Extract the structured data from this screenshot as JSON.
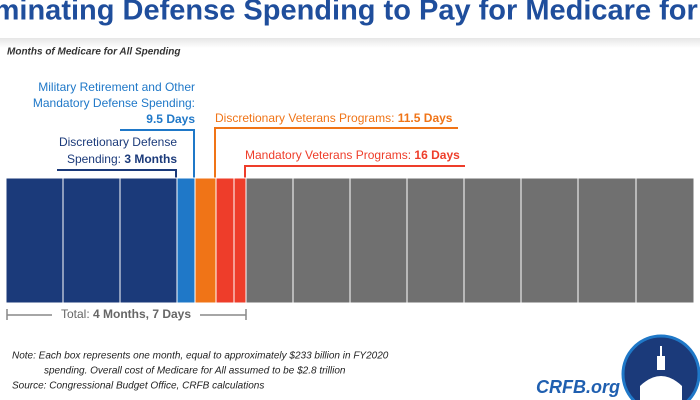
{
  "header": {
    "title": "Eliminating Defense Spending to Pay for Medicare for All",
    "subtitle": "Months of Medicare for All Spending"
  },
  "labels": {
    "military": {
      "lines": [
        "Military Retirement and Other",
        "Mandatory Defense Spending:"
      ],
      "value": "9.5 Days"
    },
    "defense": {
      "lines": [
        "Discretionary Defense",
        "Spending: "
      ],
      "value": "3 Months"
    },
    "disc_vet": {
      "text": "Discretionary Veterans Programs: ",
      "value": "11.5 Days"
    },
    "mand_vet": {
      "text": "Mandatory Veterans Programs: ",
      "value": "16 Days"
    },
    "total": {
      "text": "Total: ",
      "value": "4 Months, 7 Days"
    }
  },
  "notes": {
    "lines": [
      "Note: Each box represents one month, equal to approximately $233 billion in FY2020",
      "spending. Overall cost of Medicare for All assumed to be $2.8 trillion",
      "Source: Congressional Budget Office, CRFB calculations"
    ],
    "brand": "CRFB.org"
  }
}
